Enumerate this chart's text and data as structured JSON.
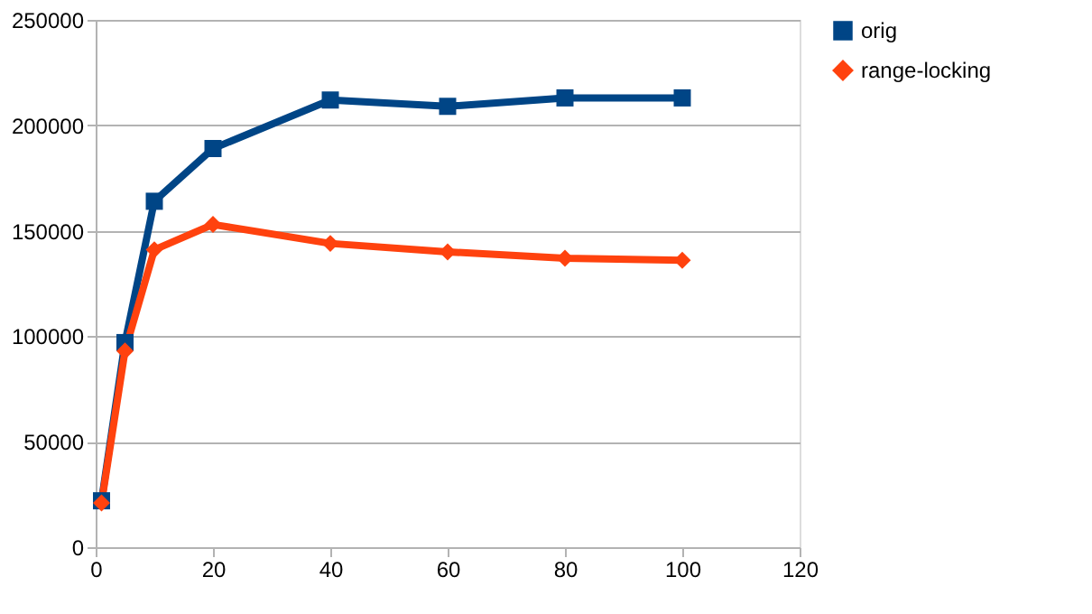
{
  "chart_data": {
    "type": "line",
    "x": [
      1,
      5,
      10,
      20,
      40,
      60,
      80,
      100
    ],
    "series": [
      {
        "name": "orig",
        "color": "#004586",
        "marker": "square",
        "values": [
          22000,
          97000,
          164000,
          189000,
          212000,
          209000,
          213000,
          213000
        ]
      },
      {
        "name": "range-locking",
        "color": "#ff420e",
        "marker": "diamond",
        "values": [
          21000,
          93000,
          141000,
          153000,
          144000,
          140000,
          137000,
          136000
        ]
      }
    ],
    "xlim": [
      0,
      120
    ],
    "xticks": [
      0,
      20,
      40,
      60,
      80,
      100,
      120
    ],
    "ylim": [
      0,
      250000
    ],
    "yticks": [
      0,
      50000,
      100000,
      150000,
      200000,
      250000
    ],
    "grid": "y",
    "legend": "right",
    "line_style": "solid"
  }
}
